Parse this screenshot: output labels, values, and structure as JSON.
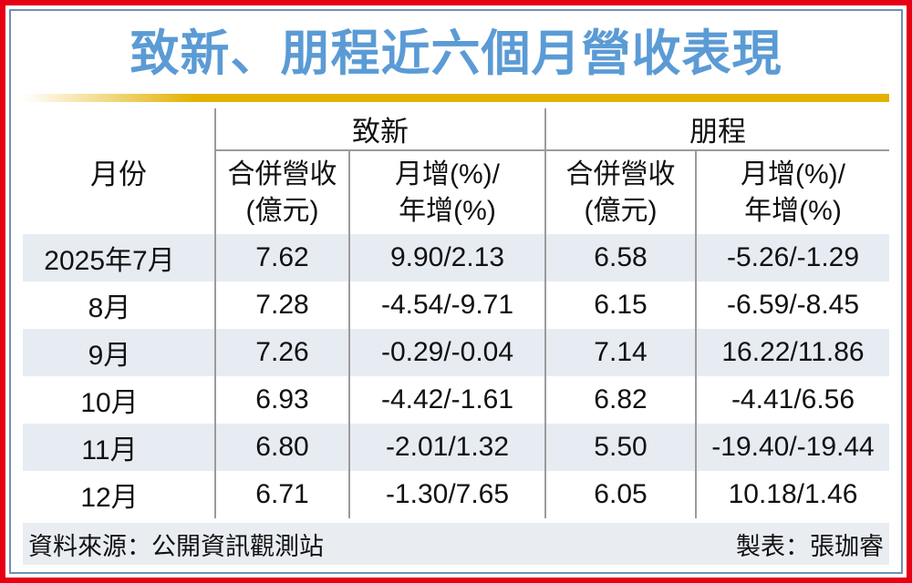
{
  "title": "致新、朋程近六個月營收表現",
  "colors": {
    "red_border": "#E60014",
    "blue_border": "#6C92B4",
    "title_blue": "#5B9BD5",
    "gold": "#E4B100",
    "stripe": "#E7ECF3",
    "footer_bg": "#E9EDF2",
    "grid": "#9B9B9B",
    "text": "#111111"
  },
  "table": {
    "month_header": "月份",
    "groups": [
      {
        "name": "致新",
        "rev_l1": "合併營收",
        "rev_l2": "(億元)",
        "chg_l1": "月增(%)/",
        "chg_l2": "年增(%)"
      },
      {
        "name": "朋程",
        "rev_l1": "合併營收",
        "rev_l2": "(億元)",
        "chg_l1": "月增(%)/",
        "chg_l2": "年增(%)"
      }
    ],
    "rows": [
      {
        "month": "2025年7月",
        "gmt_rev": "7.62",
        "gmt_chg": "9.90/2.13",
        "actron_rev": "6.58",
        "actron_chg": "-5.26/-1.29"
      },
      {
        "month": "8月",
        "gmt_rev": "7.28",
        "gmt_chg": "-4.54/-9.71",
        "actron_rev": "6.15",
        "actron_chg": "-6.59/-8.45"
      },
      {
        "month": "9月",
        "gmt_rev": "7.26",
        "gmt_chg": "-0.29/-0.04",
        "actron_rev": "7.14",
        "actron_chg": "16.22/11.86"
      },
      {
        "month": "10月",
        "gmt_rev": "6.93",
        "gmt_chg": "-4.42/-1.61",
        "actron_rev": "6.82",
        "actron_chg": "-4.41/6.56"
      },
      {
        "month": "11月",
        "gmt_rev": "6.80",
        "gmt_chg": "-2.01/1.32",
        "actron_rev": "5.50",
        "actron_chg": "-19.40/-19.44"
      },
      {
        "month": "12月",
        "gmt_rev": "6.71",
        "gmt_chg": "-1.30/7.65",
        "actron_rev": "6.05",
        "actron_chg": "10.18/1.46"
      }
    ]
  },
  "footer": {
    "source": "資料來源：公開資訊觀測站",
    "credit": "製表：張珈睿"
  },
  "chart_data": {
    "type": "table",
    "title": "致新、朋程近六個月營收表現",
    "columns": [
      "月份",
      "致新 合併營收(億元)",
      "致新 月增(%)/年增(%)",
      "朋程 合併營收(億元)",
      "朋程 月增(%)/年增(%)"
    ],
    "categories": [
      "2025年7月",
      "8月",
      "9月",
      "10月",
      "11月",
      "12月"
    ],
    "series": [
      {
        "name": "致新 合併營收(億元)",
        "values": [
          7.62,
          7.28,
          7.26,
          6.93,
          6.8,
          6.71
        ]
      },
      {
        "name": "致新 月增(%)",
        "values": [
          9.9,
          -4.54,
          -0.29,
          -4.42,
          -2.01,
          -1.3
        ]
      },
      {
        "name": "致新 年增(%)",
        "values": [
          2.13,
          -9.71,
          -0.04,
          -1.61,
          1.32,
          7.65
        ]
      },
      {
        "name": "朋程 合併營收(億元)",
        "values": [
          6.58,
          6.15,
          7.14,
          6.82,
          5.5,
          6.05
        ]
      },
      {
        "name": "朋程 月增(%)",
        "values": [
          -5.26,
          -6.59,
          16.22,
          -4.41,
          -19.4,
          10.18
        ]
      },
      {
        "name": "朋程 年增(%)",
        "values": [
          -1.29,
          -8.45,
          11.86,
          6.56,
          -19.44,
          1.46
        ]
      }
    ],
    "source": "公開資訊觀測站",
    "credit": "張珈睿"
  }
}
